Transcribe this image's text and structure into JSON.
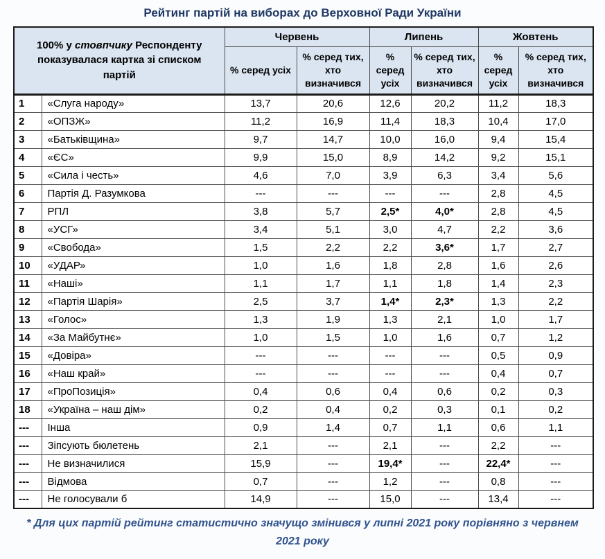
{
  "title": "Рейтинг партій на виборах до Верховної Ради України",
  "colors": {
    "page_bg": "#fbfcfd",
    "title_color": "#1f3864",
    "header_bg": "#dbe5f1",
    "border_dark": "#1a1a1a",
    "footnote_color": "#31538f"
  },
  "chart_data": {
    "type": "table",
    "corner_header": {
      "pre": "100% у ",
      "italic": "стовпчику",
      "post": " Респонденту показувалася картка зі списком партій"
    },
    "month_groups": [
      "Червень",
      "Липень",
      "Жовтень"
    ],
    "sub_headers": [
      "% серед усіх",
      "% серед тих, хто визначився",
      "% серед усіх",
      "% серед тих, хто визначився",
      "% серед усіх",
      "% серед тих, хто визначився"
    ],
    "rows": [
      {
        "rank": "1",
        "party": "«Слуга народу»",
        "values": [
          "13,7",
          "20,6",
          "12,6",
          "20,2",
          "11,2",
          "18,3"
        ]
      },
      {
        "rank": "2",
        "party": "«ОПЗЖ»",
        "values": [
          "11,2",
          "16,9",
          "11,4",
          "18,3",
          "10,4",
          "17,0"
        ]
      },
      {
        "rank": "3",
        "party": "«Батьківщина»",
        "values": [
          "9,7",
          "14,7",
          "10,0",
          "16,0",
          "9,4",
          "15,4"
        ]
      },
      {
        "rank": "4",
        "party": "«ЄС»",
        "values": [
          "9,9",
          "15,0",
          "8,9",
          "14,2",
          "9,2",
          "15,1"
        ]
      },
      {
        "rank": "5",
        "party": "«Сила і честь»",
        "values": [
          "4,6",
          "7,0",
          "3,9",
          "6,3",
          "3,4",
          "5,6"
        ]
      },
      {
        "rank": "6",
        "party": "Партія Д. Разумкова",
        "values": [
          "---",
          "---",
          "---",
          "---",
          "2,8",
          "4,5"
        ]
      },
      {
        "rank": "7",
        "party": "РПЛ",
        "values": [
          "3,8",
          "5,7",
          "2,5*",
          "4,0*",
          "2,8",
          "4,5"
        ]
      },
      {
        "rank": "8",
        "party": "«УСГ»",
        "values": [
          "3,4",
          "5,1",
          "3,0",
          "4,7",
          "2,2",
          "3,6"
        ]
      },
      {
        "rank": "9",
        "party": "«Свобода»",
        "values": [
          "1,5",
          "2,2",
          "2,2",
          "3,6*",
          "1,7",
          "2,7"
        ]
      },
      {
        "rank": "10",
        "party": "«УДАР»",
        "values": [
          "1,0",
          "1,6",
          "1,8",
          "2,8",
          "1,6",
          "2,6"
        ]
      },
      {
        "rank": "11",
        "party": "«Наші»",
        "values": [
          "1,1",
          "1,7",
          "1,1",
          "1,8",
          "1,4",
          "2,3"
        ]
      },
      {
        "rank": "12",
        "party": "«Партія Шарія»",
        "values": [
          "2,5",
          "3,7",
          "1,4*",
          "2,3*",
          "1,3",
          "2,2"
        ]
      },
      {
        "rank": "13",
        "party": "«Голос»",
        "values": [
          "1,3",
          "1,9",
          "1,3",
          "2,1",
          "1,0",
          "1,7"
        ]
      },
      {
        "rank": "14",
        "party": "«За Майбутнє»",
        "values": [
          "1,0",
          "1,5",
          "1,0",
          "1,6",
          "0,7",
          "1,2"
        ]
      },
      {
        "rank": "15",
        "party": "«Довіра»",
        "values": [
          "---",
          "---",
          "---",
          "---",
          "0,5",
          "0,9"
        ]
      },
      {
        "rank": "16",
        "party": "«Наш край»",
        "values": [
          "---",
          "---",
          "---",
          "---",
          "0,4",
          "0,7"
        ]
      },
      {
        "rank": "17",
        "party": "«ПроПозиція»",
        "values": [
          "0,4",
          "0,6",
          "0,4",
          "0,6",
          "0,2",
          "0,3"
        ]
      },
      {
        "rank": "18",
        "party": "«Україна – наш дім»",
        "values": [
          "0,2",
          "0,4",
          "0,2",
          "0,3",
          "0,1",
          "0,2"
        ]
      },
      {
        "rank": "---",
        "party": "Інша",
        "values": [
          "0,9",
          "1,4",
          "0,7",
          "1,1",
          "0,6",
          "1,1"
        ]
      },
      {
        "rank": "---",
        "party": "Зіпсують бюлетень",
        "values": [
          "2,1",
          "---",
          "2,1",
          "---",
          "2,2",
          "---"
        ]
      },
      {
        "rank": "---",
        "party": "Не визначилися",
        "values": [
          "15,9",
          "---",
          "19,4*",
          "---",
          "22,4*",
          "---"
        ]
      },
      {
        "rank": "---",
        "party": "Відмова",
        "values": [
          "0,7",
          "---",
          "1,2",
          "---",
          "0,8",
          "---"
        ]
      },
      {
        "rank": "---",
        "party": "Не голосували б",
        "values": [
          "14,9",
          "---",
          "15,0",
          "---",
          "13,4",
          "---"
        ]
      }
    ],
    "footnote": "* Для цих партій рейтинг статистично значущо змінився у липні 2021 року порівняно з червнем 2021 року"
  }
}
